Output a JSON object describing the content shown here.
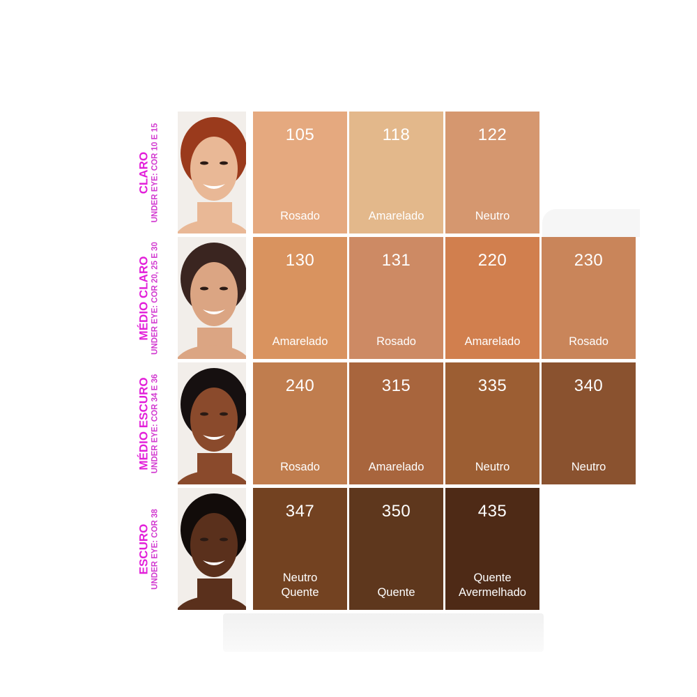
{
  "rows": [
    {
      "name": "CLARO",
      "under_eye": "UNDER EYE: COR 10 E 15",
      "skin": "#e9b896",
      "hair": "#9a3a1c",
      "shades": [
        {
          "code": "105",
          "tone": "Rosado",
          "color": "#e5a97f"
        },
        {
          "code": "118",
          "tone": "Amarelado",
          "color": "#e3b88b"
        },
        {
          "code": "122",
          "tone": "Neutro",
          "color": "#d5976f"
        }
      ]
    },
    {
      "name": "MÉDIO CLARO",
      "under_eye": "UNDER EYE: COR 20, 25 E 30",
      "skin": "#dba583",
      "hair": "#3a2520",
      "shades": [
        {
          "code": "130",
          "tone": "Amarelado",
          "color": "#d9935f"
        },
        {
          "code": "131",
          "tone": "Rosado",
          "color": "#cd8a64"
        },
        {
          "code": "220",
          "tone": "Amarelado",
          "color": "#d17f4e"
        },
        {
          "code": "230",
          "tone": "Rosado",
          "color": "#c9855a"
        }
      ]
    },
    {
      "name": "MÉDIO ESCURO",
      "under_eye": "UNDER EYE: COR 34 E 36",
      "skin": "#8a4a2c",
      "hair": "#161010",
      "shades": [
        {
          "code": "240",
          "tone": "Rosado",
          "color": "#c07d4e"
        },
        {
          "code": "315",
          "tone": "Amarelado",
          "color": "#a8653d"
        },
        {
          "code": "335",
          "tone": "Neutro",
          "color": "#9c5e33"
        },
        {
          "code": "340",
          "tone": "Neutro",
          "color": "#8a522f"
        }
      ]
    },
    {
      "name": "ESCURO",
      "under_eye": "UNDER EYE: COR 38",
      "skin": "#5a301c",
      "hair": "#120c0a",
      "shades": [
        {
          "code": "347",
          "tone": "Neutro\nQuente",
          "color": "#734221"
        },
        {
          "code": "350",
          "tone": "Quente",
          "color": "#5e371d"
        },
        {
          "code": "435",
          "tone": "Quente\nAvermelhado",
          "color": "#4e2a16"
        }
      ]
    }
  ]
}
